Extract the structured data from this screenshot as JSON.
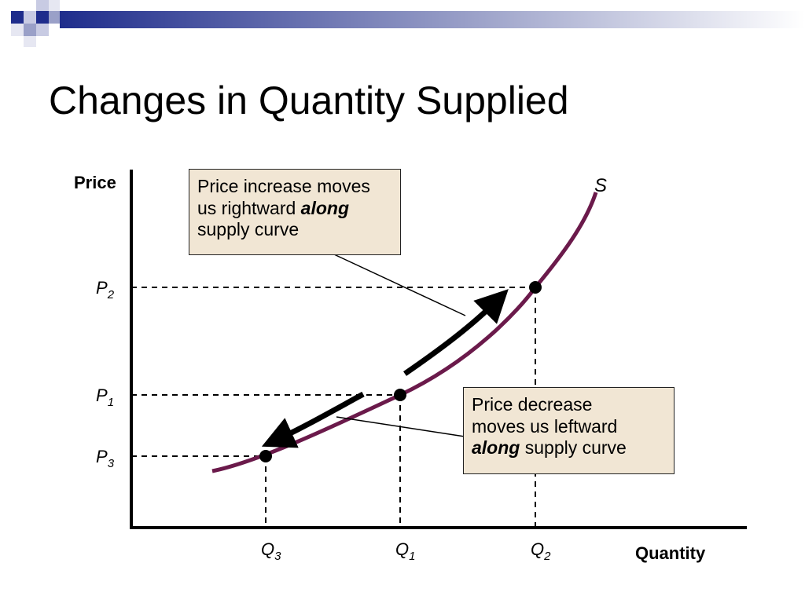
{
  "slide": {
    "title": "Changes in Quantity Supplied"
  },
  "diagram": {
    "y_axis_label": "Price",
    "x_axis_label": "Quantity",
    "curve_label": "S",
    "price_levels": [
      {
        "base": "P",
        "sub": "2"
      },
      {
        "base": "P",
        "sub": "1"
      },
      {
        "base": "P",
        "sub": "3"
      }
    ],
    "quantity_levels": [
      {
        "base": "Q",
        "sub": "3"
      },
      {
        "base": "Q",
        "sub": "1"
      },
      {
        "base": "Q",
        "sub": "2"
      }
    ],
    "callout_increase": {
      "line1": "Price increase moves",
      "line2_pre": "us rightward ",
      "line2_emph": "along",
      "line3": "supply curve"
    },
    "callout_decrease": {
      "line1": "Price decrease",
      "line2": "moves us leftward",
      "line3_emph": "along",
      "line3_post": " supply curve"
    },
    "colors": {
      "curve": "#6b1a4b",
      "callout_fill": "#f1e6d4",
      "accent_blue": "#1f2d8c"
    }
  }
}
